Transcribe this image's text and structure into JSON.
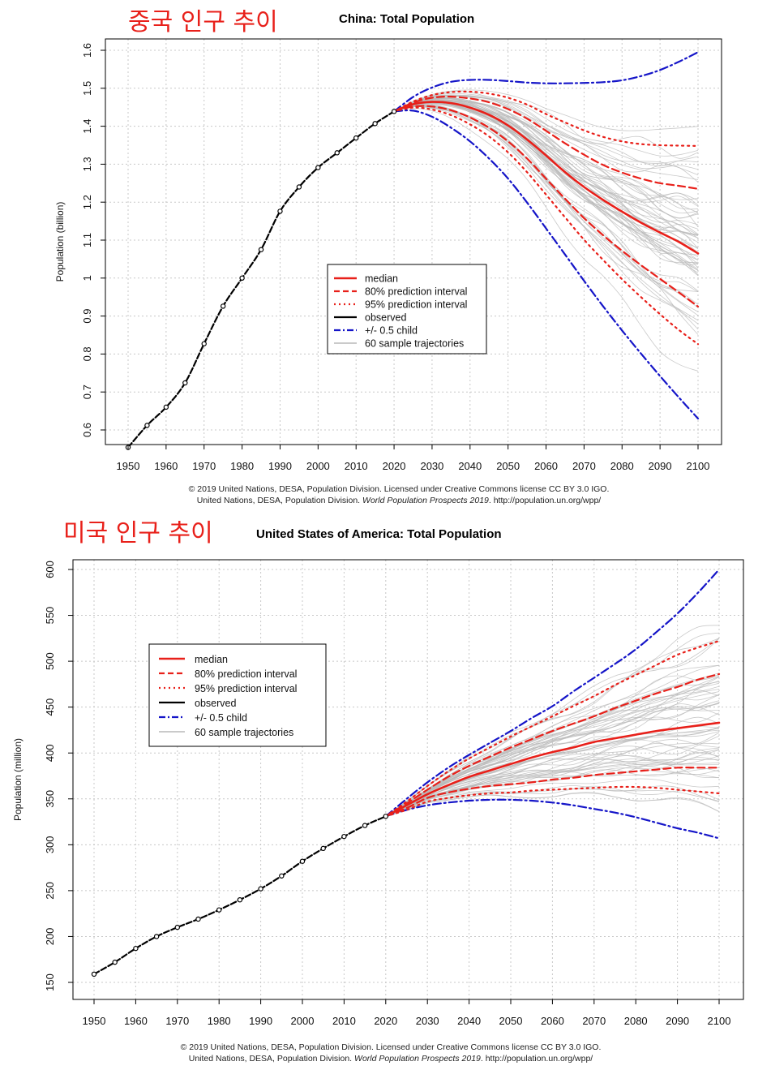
{
  "page": {
    "china_heading": "중국 인구 추이",
    "usa_heading": "미국 인구 추이"
  },
  "chart_data": [
    {
      "type": "line",
      "title": "China: Total Population",
      "xlabel": "",
      "ylabel": "Population (billion)",
      "xlim": [
        1950,
        2100
      ],
      "ylim": [
        0.55,
        1.6
      ],
      "x_ticks": [
        1950,
        1960,
        1970,
        1980,
        1990,
        2000,
        2010,
        2020,
        2030,
        2040,
        2050,
        2060,
        2070,
        2080,
        2090,
        2100
      ],
      "y_ticks": [
        0.6,
        0.7,
        0.8,
        0.9,
        1,
        1.1,
        1.2,
        1.3,
        1.4,
        1.5,
        1.6
      ],
      "grid": true,
      "legend_position": "center",
      "legend": [
        "median",
        "80% prediction interval",
        "95% prediction interval",
        "observed",
        "+/- 0.5 child",
        "60 sample trajectories"
      ],
      "credit": [
        "© 2019 United Nations, DESA, Population Division. Licensed under Creative Commons license CC BY 3.0 IGO.",
        "United Nations, DESA, Population Division.",
        "World Population Prospects 2019",
        ". http://population.un.org/wpp/"
      ],
      "colors": {
        "median": "#e8201a",
        "pi80": "#e8201a",
        "pi95": "#e8201a",
        "observed": "#000000",
        "half_child": "#1515c8",
        "trajectories": "#b8b8b8"
      },
      "series": [
        {
          "name": "observed",
          "x": [
            1950,
            1955,
            1960,
            1965,
            1970,
            1975,
            1980,
            1985,
            1990,
            1995,
            2000,
            2005,
            2010,
            2015,
            2020
          ],
          "values": [
            0.554,
            0.612,
            0.66,
            0.724,
            0.827,
            0.926,
            1.0,
            1.075,
            1.176,
            1.24,
            1.291,
            1.33,
            1.369,
            1.407,
            1.439
          ]
        },
        {
          "name": "median",
          "x": [
            2020,
            2025,
            2030,
            2035,
            2040,
            2045,
            2050,
            2055,
            2060,
            2065,
            2070,
            2075,
            2080,
            2085,
            2090,
            2095,
            2100
          ],
          "values": [
            1.439,
            1.458,
            1.464,
            1.461,
            1.449,
            1.43,
            1.402,
            1.365,
            1.323,
            1.279,
            1.24,
            1.206,
            1.175,
            1.146,
            1.12,
            1.095,
            1.065
          ]
        },
        {
          "name": "80% prediction interval upper",
          "x": [
            2020,
            2025,
            2030,
            2035,
            2040,
            2045,
            2050,
            2055,
            2060,
            2065,
            2070,
            2075,
            2080,
            2085,
            2090,
            2095,
            2100
          ],
          "values": [
            1.439,
            1.462,
            1.475,
            1.478,
            1.473,
            1.463,
            1.445,
            1.42,
            1.388,
            1.355,
            1.325,
            1.298,
            1.278,
            1.262,
            1.25,
            1.243,
            1.235
          ]
        },
        {
          "name": "80% prediction interval lower",
          "x": [
            2020,
            2025,
            2030,
            2035,
            2040,
            2045,
            2050,
            2055,
            2060,
            2065,
            2070,
            2075,
            2080,
            2085,
            2090,
            2095,
            2100
          ],
          "values": [
            1.439,
            1.452,
            1.452,
            1.442,
            1.423,
            1.396,
            1.36,
            1.315,
            1.262,
            1.209,
            1.158,
            1.113,
            1.072,
            1.034,
            0.998,
            0.962,
            0.925
          ]
        },
        {
          "name": "95% prediction interval upper",
          "x": [
            2020,
            2025,
            2030,
            2035,
            2040,
            2045,
            2050,
            2055,
            2060,
            2065,
            2070,
            2075,
            2080,
            2085,
            2090,
            2095,
            2100
          ],
          "values": [
            1.439,
            1.465,
            1.482,
            1.49,
            1.491,
            1.486,
            1.475,
            1.457,
            1.432,
            1.41,
            1.389,
            1.372,
            1.36,
            1.353,
            1.35,
            1.349,
            1.348
          ]
        },
        {
          "name": "95% prediction interval lower",
          "x": [
            2020,
            2025,
            2030,
            2035,
            2040,
            2045,
            2050,
            2055,
            2060,
            2065,
            2070,
            2075,
            2080,
            2085,
            2090,
            2095,
            2100
          ],
          "values": [
            1.439,
            1.449,
            1.444,
            1.429,
            1.405,
            1.373,
            1.331,
            1.279,
            1.22,
            1.16,
            1.101,
            1.048,
            0.997,
            0.95,
            0.905,
            0.863,
            0.826
          ]
        },
        {
          "name": "+/- 0.5 child upper",
          "x": [
            2020,
            2025,
            2030,
            2035,
            2040,
            2045,
            2050,
            2055,
            2060,
            2065,
            2070,
            2075,
            2080,
            2085,
            2090,
            2095,
            2100
          ],
          "values": [
            1.439,
            1.477,
            1.502,
            1.517,
            1.522,
            1.522,
            1.519,
            1.515,
            1.513,
            1.513,
            1.514,
            1.516,
            1.521,
            1.532,
            1.548,
            1.57,
            1.595
          ]
        },
        {
          "name": "+/- 0.5 child lower",
          "x": [
            2020,
            2025,
            2030,
            2035,
            2040,
            2045,
            2050,
            2055,
            2060,
            2065,
            2070,
            2075,
            2080,
            2085,
            2090,
            2095,
            2100
          ],
          "values": [
            1.439,
            1.441,
            1.425,
            1.396,
            1.36,
            1.315,
            1.262,
            1.199,
            1.131,
            1.062,
            0.993,
            0.926,
            0.862,
            0.801,
            0.742,
            0.685,
            0.63
          ]
        }
      ]
    },
    {
      "type": "line",
      "title": "United States of America: Total Population",
      "xlabel": "",
      "ylabel": "Population (million)",
      "xlim": [
        1950,
        2100
      ],
      "ylim": [
        150,
        610
      ],
      "x_ticks": [
        1950,
        1960,
        1970,
        1980,
        1990,
        2000,
        2010,
        2020,
        2030,
        2040,
        2050,
        2060,
        2070,
        2080,
        2090,
        2100
      ],
      "y_ticks": [
        150,
        200,
        250,
        300,
        350,
        400,
        450,
        500,
        550,
        600
      ],
      "grid": true,
      "legend_position": "top-left",
      "legend": [
        "median",
        "80% prediction interval",
        "95% prediction interval",
        "observed",
        "+/- 0.5 child",
        "60 sample trajectories"
      ],
      "credit": [
        "© 2019 United Nations, DESA, Population Division. Licensed under Creative Commons license CC BY 3.0 IGO.",
        "United Nations, DESA, Population Division.",
        "World Population Prospects 2019",
        ". http://population.un.org/wpp/"
      ],
      "colors": {
        "median": "#e8201a",
        "pi80": "#e8201a",
        "pi95": "#e8201a",
        "observed": "#000000",
        "half_child": "#1515c8",
        "trajectories": "#b8b8b8"
      },
      "series": [
        {
          "name": "observed",
          "x": [
            1950,
            1955,
            1960,
            1965,
            1970,
            1975,
            1980,
            1985,
            1990,
            1995,
            2000,
            2005,
            2010,
            2015,
            2020
          ],
          "values": [
            159,
            172,
            187,
            200,
            210,
            219,
            229,
            240,
            252,
            266,
            282,
            296,
            309,
            321,
            331
          ]
        },
        {
          "name": "median",
          "x": [
            2020,
            2025,
            2030,
            2035,
            2040,
            2045,
            2050,
            2055,
            2060,
            2065,
            2070,
            2075,
            2080,
            2085,
            2090,
            2095,
            2100
          ],
          "values": [
            331,
            343,
            355,
            365,
            374,
            381,
            388,
            395,
            401,
            406,
            412,
            416,
            420,
            424,
            427,
            430,
            433
          ]
        },
        {
          "name": "80% prediction interval upper",
          "x": [
            2020,
            2025,
            2030,
            2035,
            2040,
            2045,
            2050,
            2055,
            2060,
            2065,
            2070,
            2075,
            2080,
            2085,
            2090,
            2095,
            2100
          ],
          "values": [
            331,
            345,
            360,
            374,
            386,
            396,
            406,
            415,
            424,
            432,
            440,
            449,
            457,
            465,
            472,
            480,
            486
          ]
        },
        {
          "name": "80% prediction interval lower",
          "x": [
            2020,
            2025,
            2030,
            2035,
            2040,
            2045,
            2050,
            2055,
            2060,
            2065,
            2070,
            2075,
            2080,
            2085,
            2090,
            2095,
            2100
          ],
          "values": [
            331,
            340,
            351,
            357,
            361,
            364,
            366,
            368,
            371,
            373,
            376,
            378,
            380,
            382,
            384,
            384,
            384
          ]
        },
        {
          "name": "95% prediction interval upper",
          "x": [
            2020,
            2025,
            2030,
            2035,
            2040,
            2045,
            2050,
            2055,
            2060,
            2065,
            2070,
            2075,
            2080,
            2085,
            2090,
            2095,
            2100
          ],
          "values": [
            331,
            347,
            364,
            380,
            394,
            406,
            418,
            429,
            440,
            451,
            462,
            474,
            485,
            496,
            507,
            515,
            522
          ]
        },
        {
          "name": "95% prediction interval lower",
          "x": [
            2020,
            2025,
            2030,
            2035,
            2040,
            2045,
            2050,
            2055,
            2060,
            2065,
            2070,
            2075,
            2080,
            2085,
            2090,
            2095,
            2100
          ],
          "values": [
            331,
            338,
            347,
            351,
            354,
            356,
            357,
            359,
            360,
            361,
            362,
            363,
            363,
            362,
            360,
            358,
            356
          ]
        },
        {
          "name": "+/- 0.5 child upper",
          "x": [
            2020,
            2025,
            2030,
            2035,
            2040,
            2045,
            2050,
            2055,
            2060,
            2065,
            2070,
            2075,
            2080,
            2085,
            2090,
            2095,
            2100
          ],
          "values": [
            331,
            350,
            368,
            384,
            398,
            411,
            424,
            438,
            451,
            467,
            482,
            497,
            513,
            532,
            552,
            575,
            600
          ]
        },
        {
          "name": "+/- 0.5 child lower",
          "x": [
            2020,
            2025,
            2030,
            2035,
            2040,
            2045,
            2050,
            2055,
            2060,
            2065,
            2070,
            2075,
            2080,
            2085,
            2090,
            2095,
            2100
          ],
          "values": [
            331,
            338,
            343,
            346,
            348,
            349,
            349,
            348,
            346,
            343,
            339,
            335,
            330,
            324,
            318,
            313,
            307
          ]
        }
      ]
    }
  ]
}
